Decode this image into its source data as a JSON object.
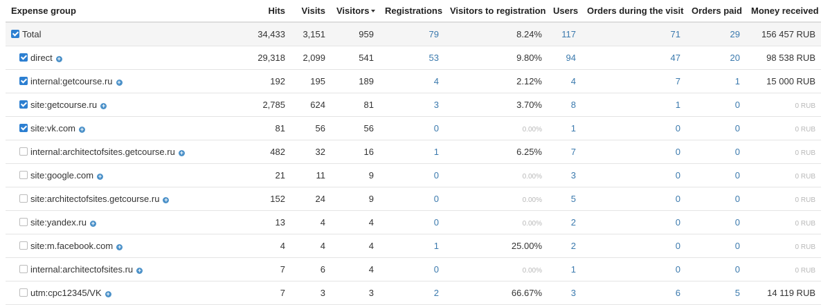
{
  "table": {
    "headers": {
      "group": "Expense group",
      "hits": "Hits",
      "visits": "Visits",
      "visitors": "Visitors",
      "registrations": "Registrations",
      "conv": "Visitors to registration",
      "users": "Users",
      "orders": "Orders during the visit",
      "paid": "Orders paid",
      "money": "Money received"
    },
    "rows": [
      {
        "group": "Total",
        "checked": true,
        "hits": "34,433",
        "visits": "3,151",
        "visitors": "959",
        "registrations": "79",
        "conv": "8.24%",
        "users": "117",
        "orders": "71",
        "paid": "29",
        "money": "156 457 RUB"
      },
      {
        "group": "direct",
        "checked": true,
        "hits": "29,318",
        "visits": "2,099",
        "visitors": "541",
        "registrations": "53",
        "conv": "9.80%",
        "users": "94",
        "orders": "47",
        "paid": "20",
        "money": "98 538 RUB"
      },
      {
        "group": "internal:getcourse.ru",
        "checked": true,
        "hits": "192",
        "visits": "195",
        "visitors": "189",
        "registrations": "4",
        "conv": "2.12%",
        "users": "4",
        "orders": "7",
        "paid": "1",
        "money": "15 000 RUB"
      },
      {
        "group": "site:getcourse.ru",
        "checked": true,
        "hits": "2,785",
        "visits": "624",
        "visitors": "81",
        "registrations": "3",
        "conv": "3.70%",
        "users": "8",
        "orders": "1",
        "paid": "0",
        "money": "0 RUB"
      },
      {
        "group": "site:vk.com",
        "checked": true,
        "hits": "81",
        "visits": "56",
        "visitors": "56",
        "registrations": "0",
        "conv": "0.00%",
        "users": "1",
        "orders": "0",
        "paid": "0",
        "money": "0 RUB"
      },
      {
        "group": "internal:architectofsites.getcourse.ru",
        "checked": false,
        "hits": "482",
        "visits": "32",
        "visitors": "16",
        "registrations": "1",
        "conv": "6.25%",
        "users": "7",
        "orders": "0",
        "paid": "0",
        "money": "0 RUB"
      },
      {
        "group": "site:google.com",
        "checked": false,
        "hits": "21",
        "visits": "11",
        "visitors": "9",
        "registrations": "0",
        "conv": "0.00%",
        "users": "3",
        "orders": "0",
        "paid": "0",
        "money": "0 RUB"
      },
      {
        "group": "site:architectofsites.getcourse.ru",
        "checked": false,
        "hits": "152",
        "visits": "24",
        "visitors": "9",
        "registrations": "0",
        "conv": "0.00%",
        "users": "5",
        "orders": "0",
        "paid": "0",
        "money": "0 RUB"
      },
      {
        "group": "site:yandex.ru",
        "checked": false,
        "hits": "13",
        "visits": "4",
        "visitors": "4",
        "registrations": "0",
        "conv": "0.00%",
        "users": "2",
        "orders": "0",
        "paid": "0",
        "money": "0 RUB"
      },
      {
        "group": "site:m.facebook.com",
        "checked": false,
        "hits": "4",
        "visits": "4",
        "visitors": "4",
        "registrations": "1",
        "conv": "25.00%",
        "users": "2",
        "orders": "0",
        "paid": "0",
        "money": "0 RUB"
      },
      {
        "group": "internal:architectofsites.ru",
        "checked": false,
        "hits": "7",
        "visits": "6",
        "visitors": "4",
        "registrations": "0",
        "conv": "0.00%",
        "users": "1",
        "orders": "0",
        "paid": "0",
        "money": "0 RUB"
      },
      {
        "group": "utm:cpc12345/VK",
        "checked": false,
        "hits": "7",
        "visits": "3",
        "visitors": "3",
        "registrations": "2",
        "conv": "66.67%",
        "users": "3",
        "orders": "6",
        "paid": "5",
        "money": "14 119 RUB"
      }
    ]
  },
  "icons": {
    "checkbox": "checkbox-icon",
    "expand": "plus-circle-icon",
    "sort": "caret-down-icon"
  },
  "colors": {
    "link": "#3a79ad",
    "checkbox": "#2c7fd1",
    "muted": "#b8b8b8"
  }
}
